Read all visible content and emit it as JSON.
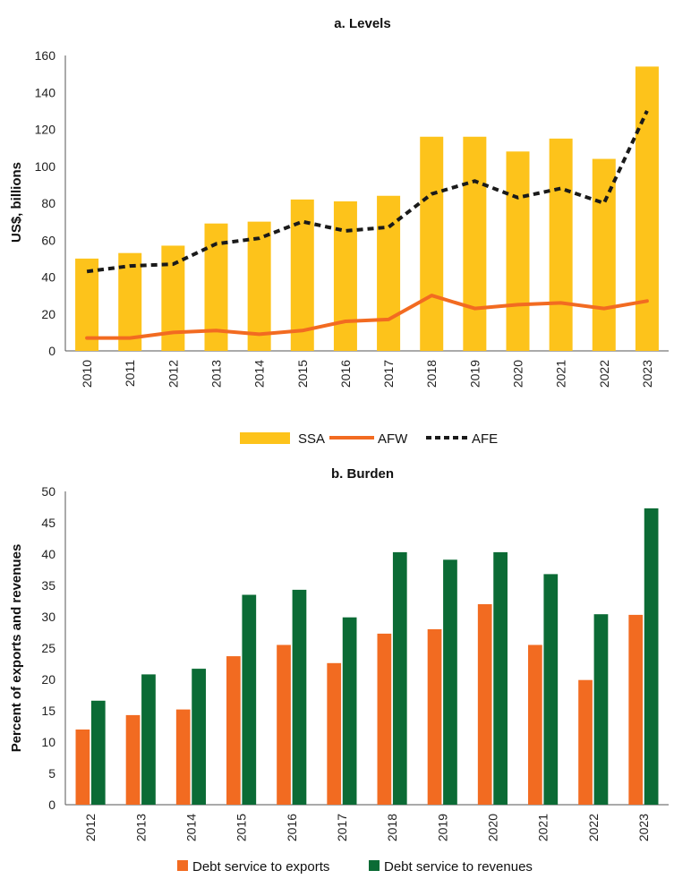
{
  "chart_data": [
    {
      "type": "bar+line",
      "title": "a. Levels",
      "ylabel": "US$, billions",
      "xlabel": "",
      "ylim": [
        0,
        160
      ],
      "yticks": [
        0,
        20,
        40,
        60,
        80,
        100,
        120,
        140,
        160
      ],
      "categories": [
        "2010",
        "2011",
        "2012",
        "2013",
        "2014",
        "2015",
        "2016",
        "2017",
        "2018",
        "2019",
        "2020",
        "2021",
        "2022",
        "2023"
      ],
      "series": [
        {
          "name": "SSA",
          "kind": "bar",
          "color": "#FDC31B",
          "values": [
            50,
            53,
            57,
            69,
            70,
            82,
            81,
            84,
            116,
            116,
            108,
            115,
            104,
            154
          ]
        },
        {
          "name": "AFW",
          "kind": "line",
          "color": "#F26B21",
          "values": [
            7,
            7,
            10,
            11,
            9,
            11,
            16,
            17,
            30,
            23,
            25,
            26,
            23,
            27
          ]
        },
        {
          "name": "AFE",
          "kind": "dashed-line",
          "color": "#1a1a1a",
          "values": [
            43,
            46,
            47,
            58,
            61,
            70,
            65,
            67,
            85,
            92,
            83,
            88,
            80,
            130
          ]
        }
      ],
      "legend": "bottom",
      "grid": false
    },
    {
      "type": "bar",
      "title": "b. Burden",
      "ylabel": "Percent of exports and revenues",
      "xlabel": "",
      "ylim": [
        0,
        50
      ],
      "yticks": [
        0,
        5,
        10,
        15,
        20,
        25,
        30,
        35,
        40,
        45,
        50
      ],
      "categories": [
        "2012",
        "2013",
        "2014",
        "2015",
        "2016",
        "2017",
        "2018",
        "2019",
        "2020",
        "2021",
        "2022",
        "2023"
      ],
      "series": [
        {
          "name": "Debt service to exports",
          "color": "#F26B21",
          "values": [
            12,
            14.3,
            15.2,
            23.7,
            25.5,
            22.6,
            27.3,
            28,
            32,
            25.5,
            19.9,
            30.3
          ]
        },
        {
          "name": "Debt service to revenues",
          "color": "#0B6B35",
          "values": [
            16.6,
            20.8,
            21.7,
            33.5,
            34.3,
            29.9,
            40.3,
            39.1,
            40.3,
            36.8,
            30.4,
            47.3
          ]
        }
      ],
      "legend": "bottom",
      "grid": false
    }
  ]
}
